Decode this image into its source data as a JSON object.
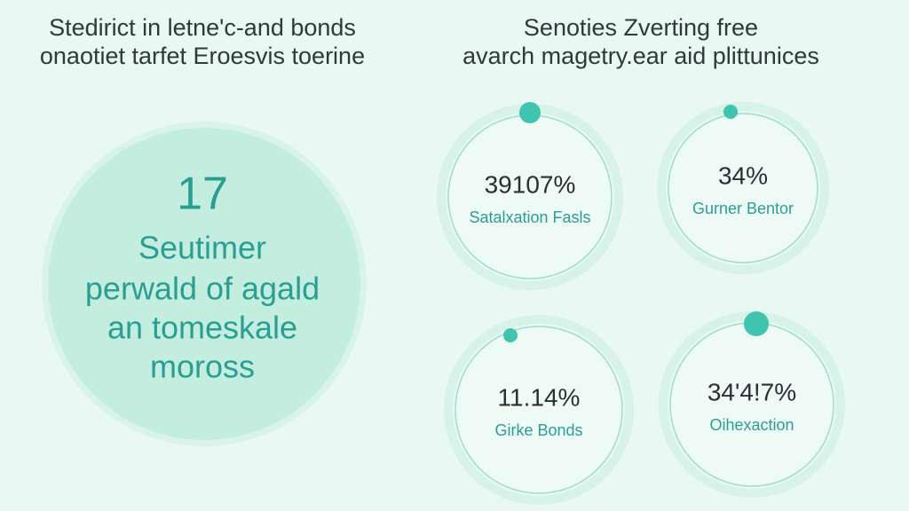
{
  "header_left": {
    "line1": "Stedirict in letne'c-and bonds",
    "line2": "onaotiet tarfet Eroesvis toerine"
  },
  "header_right": {
    "line1": "Senoties Zverting free",
    "line2": "avarch magetry.ear aid plittunices"
  },
  "feature": {
    "number": "17",
    "lines": [
      "Seutimer",
      "perwald of agald",
      "an tomeskale",
      "moross"
    ]
  },
  "stats": [
    {
      "value": "39107%",
      "label": "Satalxation Fasls"
    },
    {
      "value": "34%",
      "label": "Gurner Bentor"
    },
    {
      "value": "11.14%",
      "label": "Girke Bonds"
    },
    {
      "value": "34'4!7%",
      "label": "Oihexaction"
    }
  ]
}
